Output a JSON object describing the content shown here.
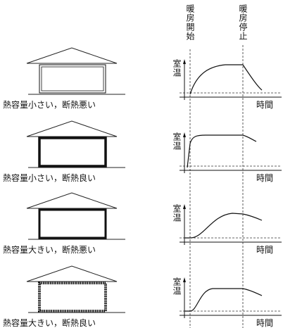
{
  "headers": {
    "start": "暖房開始",
    "stop": "暖房停止"
  },
  "rows": [
    {
      "caption": "熱容量小さい，断熱悪い",
      "y_label": "室温",
      "x_label": "時間"
    },
    {
      "caption": "熱容量小さい，断熱良い",
      "y_label": "室温",
      "x_label": "時間"
    },
    {
      "caption": "熱容量大きい，断熱悪い",
      "y_label": "室温",
      "x_label": "時間"
    },
    {
      "caption": "熱容量大きい，断熱良い",
      "y_label": "室温",
      "x_label": "時間"
    }
  ]
}
